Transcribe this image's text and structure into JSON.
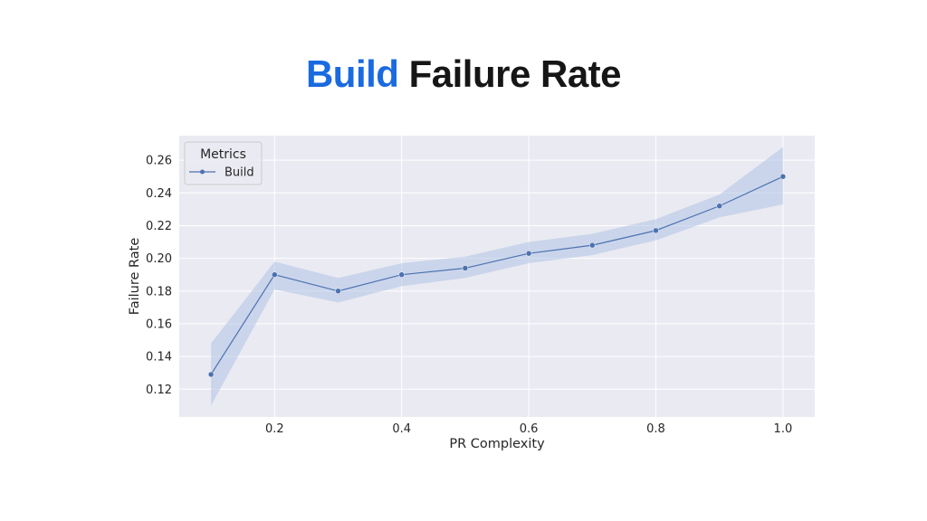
{
  "title": {
    "highlight": "Build",
    "rest": " Failure Rate"
  },
  "colors": {
    "accent": "#1a6ae0",
    "series": "#4c72b0",
    "band": "#aec3e6",
    "plot_bg": "#eaeaf2",
    "grid": "#ffffff"
  },
  "chart_data": {
    "type": "line",
    "xlabel": "PR Complexity",
    "ylabel": "Failure Rate",
    "xlim": [
      0.05,
      1.05
    ],
    "ylim": [
      0.103,
      0.275
    ],
    "xticks": [
      0.2,
      0.4,
      0.6,
      0.8,
      1.0
    ],
    "xtick_labels": [
      "0.2",
      "0.4",
      "0.6",
      "0.8",
      "1.0"
    ],
    "yticks": [
      0.12,
      0.14,
      0.16,
      0.18,
      0.2,
      0.22,
      0.24,
      0.26
    ],
    "ytick_labels": [
      "0.12",
      "0.14",
      "0.16",
      "0.18",
      "0.20",
      "0.22",
      "0.24",
      "0.26"
    ],
    "grid": true,
    "legend": {
      "title": "Metrics",
      "placement": "top-left"
    },
    "x": [
      0.1,
      0.2,
      0.3,
      0.4,
      0.5,
      0.6,
      0.7,
      0.8,
      0.9,
      1.0
    ],
    "series": [
      {
        "name": "Build",
        "values": [
          0.129,
          0.19,
          0.18,
          0.19,
          0.194,
          0.203,
          0.208,
          0.217,
          0.232,
          0.25
        ],
        "ci_lower": [
          0.11,
          0.181,
          0.173,
          0.183,
          0.188,
          0.197,
          0.202,
          0.211,
          0.225,
          0.233
        ],
        "ci_upper": [
          0.148,
          0.198,
          0.188,
          0.197,
          0.201,
          0.21,
          0.215,
          0.224,
          0.239,
          0.268
        ]
      }
    ]
  }
}
